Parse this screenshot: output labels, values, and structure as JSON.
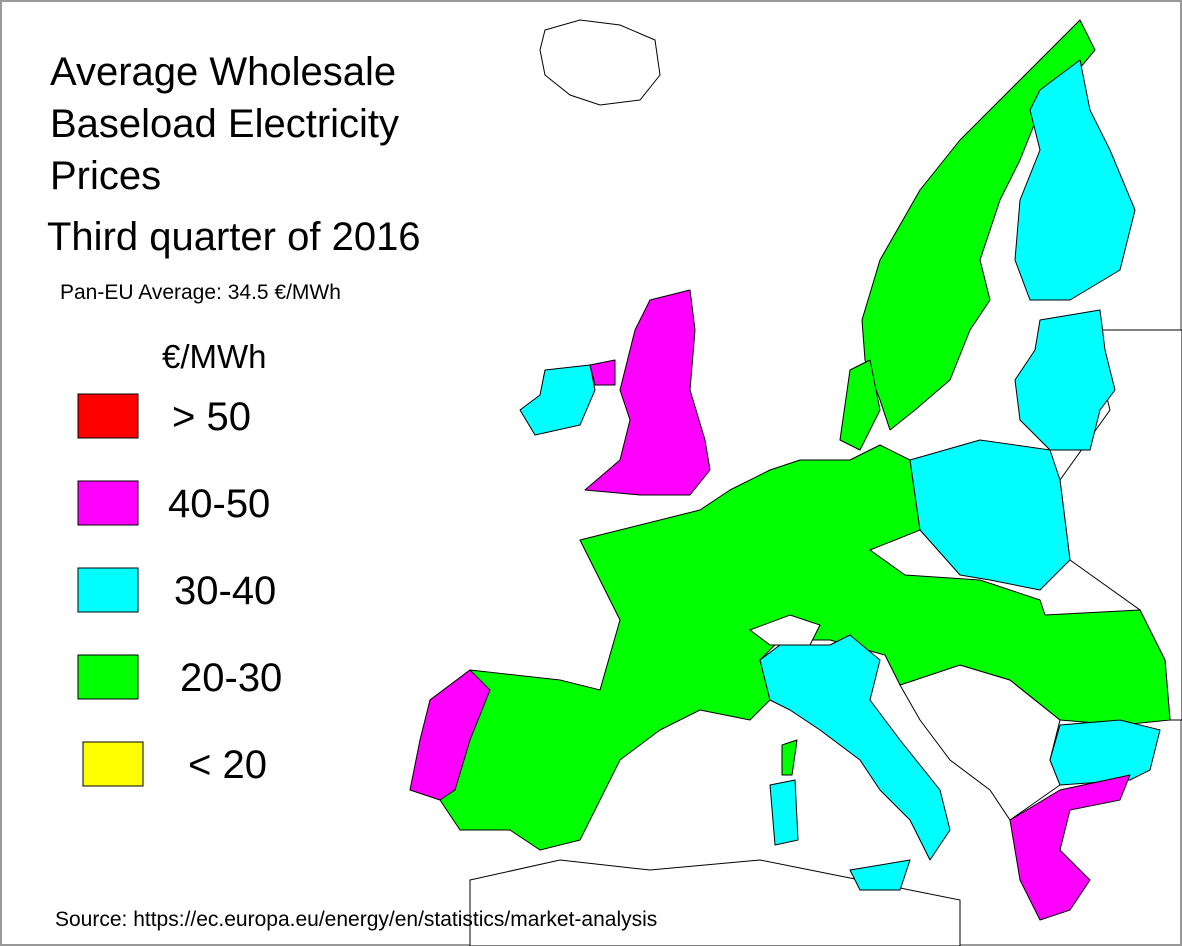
{
  "title_lines": [
    "Average Wholesale",
    "Baseload Electricity",
    "Prices"
  ],
  "period": "Third quarter of 2016",
  "average": "Pan-EU Average: 34.5 €/MWh",
  "legend": {
    "unit": "€/MWh",
    "items": [
      {
        "label": "> 50",
        "color": "#ff0000"
      },
      {
        "label": "40-50",
        "color": "#ff00ff"
      },
      {
        "label": "30-40",
        "color": "#00ffff"
      },
      {
        "label": "20-30",
        "color": "#00ff00"
      },
      {
        "label": "< 20",
        "color": "#ffff00"
      }
    ]
  },
  "source": "Source: https://ec.europa.eu/energy/en/statistics/market-analysis"
}
